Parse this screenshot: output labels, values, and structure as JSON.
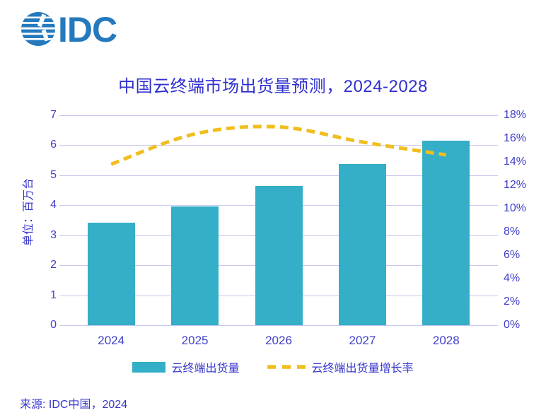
{
  "logo": {
    "text": "IDC",
    "globe_icon": "globe-stripes",
    "color": "#2579BD"
  },
  "title": "中国云终端市场出货量预测，2024-2028",
  "chart_data": {
    "type": "bar",
    "subtype": "combo-bar-line-dual-axis",
    "title": "中国云终端市场出货量预测，2024-2028",
    "categories": [
      "2024",
      "2025",
      "2026",
      "2027",
      "2028"
    ],
    "series": [
      {
        "name": "云终端出货量",
        "type": "bar",
        "axis": "left",
        "values": [
          3.42,
          3.96,
          4.64,
          5.37,
          6.15
        ],
        "color": "#35AEC7"
      },
      {
        "name": "云终端出货量增长率",
        "type": "line",
        "axis": "right",
        "style": "dashed",
        "smooth": true,
        "values": [
          13.8,
          16.4,
          17.0,
          15.7,
          14.6
        ],
        "unit": "%",
        "color": "#F0BE1E"
      }
    ],
    "left_axis": {
      "title": "单位：百万台",
      "min": 0,
      "max": 7,
      "step": 1
    },
    "right_axis": {
      "min": 0,
      "max": 18,
      "step": 2,
      "format": "percent"
    },
    "grid": true,
    "legend_position": "bottom"
  },
  "y_axis_title": "单位：百万台",
  "legend": [
    {
      "label": "云终端出货量",
      "swatch": "teal-bar"
    },
    {
      "label": "云终端出货量增长率",
      "swatch": "gold-dashed-line"
    }
  ],
  "source": "来源: IDC中国，2024",
  "colors": {
    "bar": "#35AEC7",
    "line": "#F0BE1E",
    "text": "#3838CC",
    "tick_text": "#4040C8",
    "grid": "#C8C8F0",
    "logo": "#2579BD",
    "background": "#FFFFFF"
  }
}
